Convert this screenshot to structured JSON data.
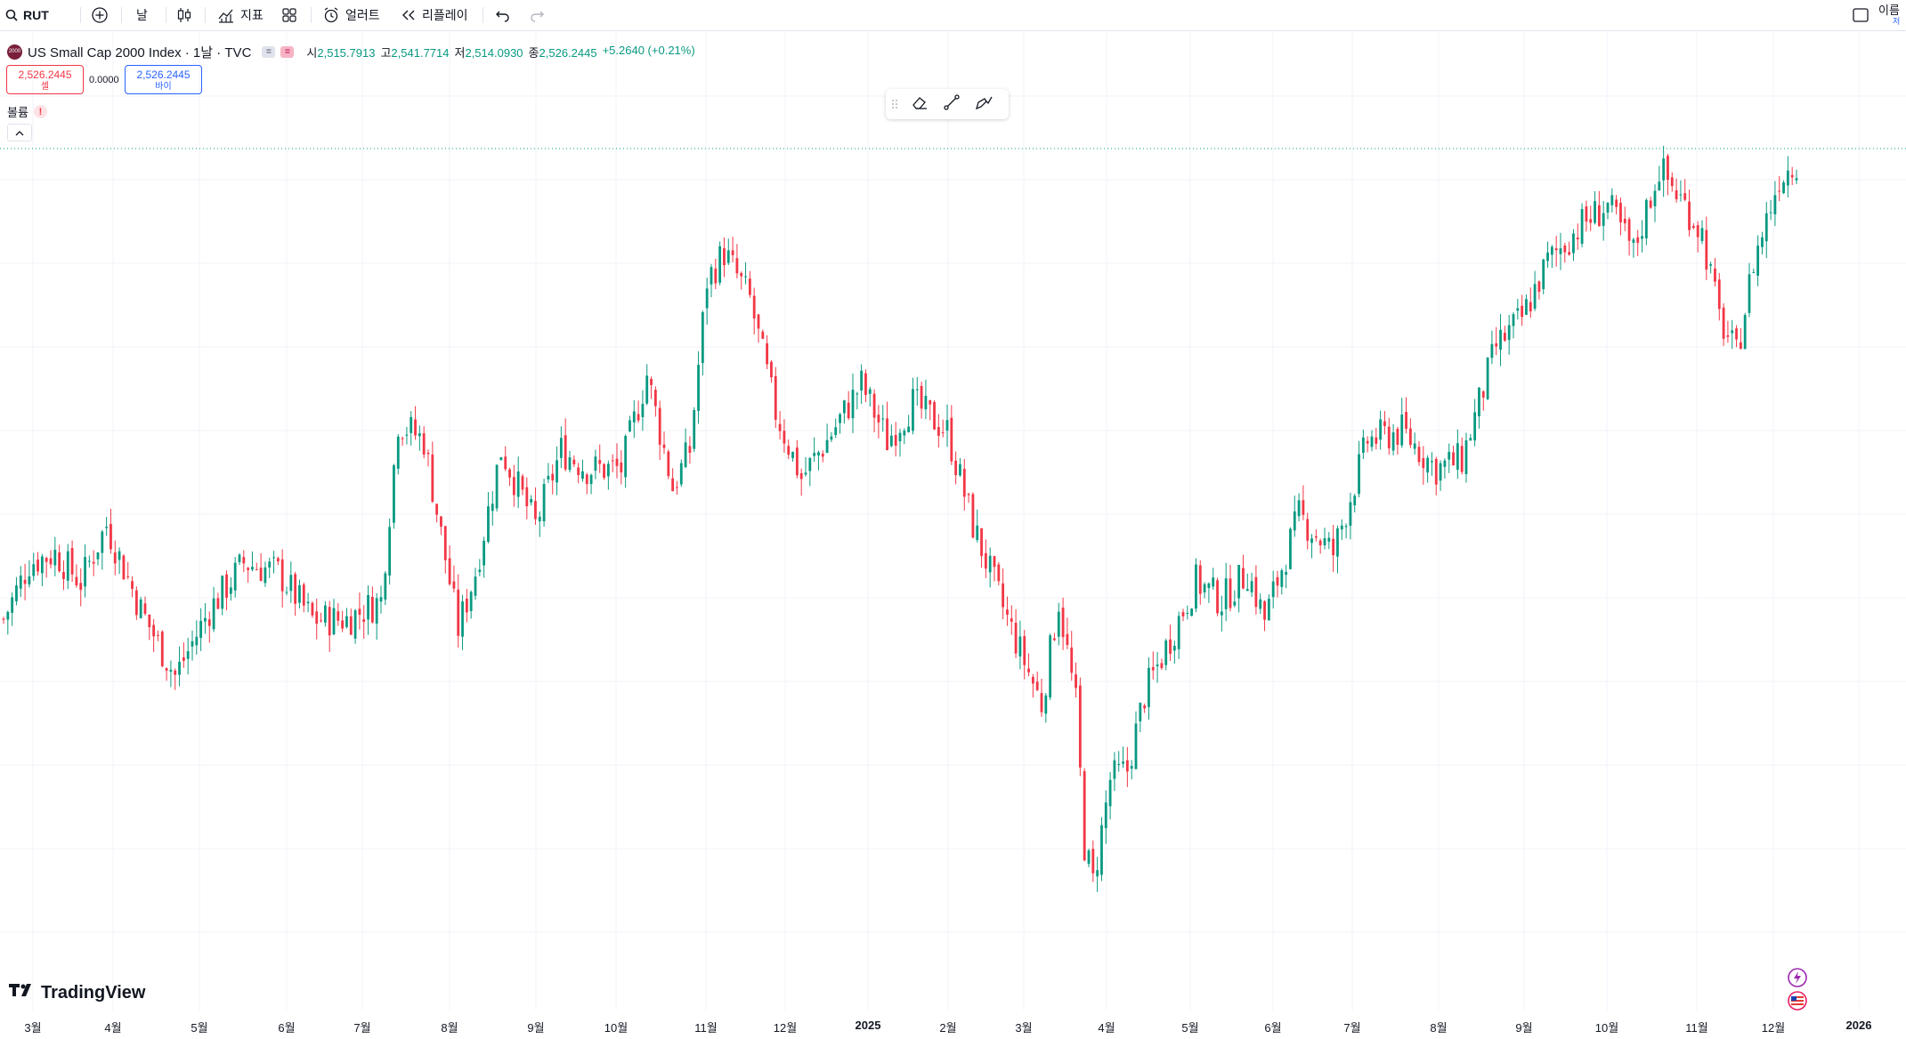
{
  "toolbar": {
    "symbol": "RUT",
    "interval": "날",
    "indicators": "지표",
    "alerts": "얼러트",
    "replay": "리플레이",
    "right_label": "이름",
    "right_sub": "저"
  },
  "legend": {
    "title": "US Small Cap 2000 Index · 1날 · TVC",
    "logo_text": "2000",
    "badge_a": "=",
    "badge_b": "=",
    "o_label": "시",
    "o": "2,515.7913",
    "h_label": "고",
    "h": "2,541.7714",
    "l_label": "저",
    "l": "2,514.0930",
    "c_label": "종",
    "c": "2,526.2445",
    "change": "+5.2640 (+0.21%)"
  },
  "trade": {
    "sell_price": "2,526.2445",
    "sell_label": "셀",
    "spread": "0.0000",
    "buy_price": "2,526.2445",
    "buy_label": "바이"
  },
  "volume": {
    "label": "볼륨",
    "warn": "!"
  },
  "brand": "TradingView",
  "colors": {
    "up": "#089981",
    "down": "#f23645",
    "grid": "#f0f3fa"
  },
  "chart_data": {
    "type": "candlestick",
    "price_range": [
      1700,
      2560
    ],
    "current_price": 2526.2445,
    "time_labels": [
      "3월",
      "4월",
      "5월",
      "6월",
      "7월",
      "8월",
      "9월",
      "10월",
      "11월",
      "12월",
      "2025",
      "2월",
      "3월",
      "4월",
      "5월",
      "6월",
      "7월",
      "8월",
      "9월",
      "10월",
      "11월",
      "12월",
      "2026"
    ],
    "key_points": [
      {
        "t": 0,
        "v": 2040
      },
      {
        "t": 3,
        "v": 2100
      },
      {
        "t": 6,
        "v": 2110
      },
      {
        "t": 9,
        "v": 2080
      },
      {
        "t": 12,
        "v": 2140
      },
      {
        "t": 16,
        "v": 2050
      },
      {
        "t": 20,
        "v": 1980
      },
      {
        "t": 24,
        "v": 2050
      },
      {
        "t": 28,
        "v": 2100
      },
      {
        "t": 32,
        "v": 2090
      },
      {
        "t": 36,
        "v": 2040
      },
      {
        "t": 40,
        "v": 2040
      },
      {
        "t": 44,
        "v": 2060
      },
      {
        "t": 46,
        "v": 2250
      },
      {
        "t": 49,
        "v": 2230
      },
      {
        "t": 51,
        "v": 2130
      },
      {
        "t": 53,
        "v": 2030
      },
      {
        "t": 55,
        "v": 2090
      },
      {
        "t": 58,
        "v": 2220
      },
      {
        "t": 62,
        "v": 2140
      },
      {
        "t": 65,
        "v": 2220
      },
      {
        "t": 68,
        "v": 2200
      },
      {
        "t": 72,
        "v": 2200
      },
      {
        "t": 75,
        "v": 2300
      },
      {
        "t": 78,
        "v": 2180
      },
      {
        "t": 80,
        "v": 2220
      },
      {
        "t": 82,
        "v": 2400
      },
      {
        "t": 84,
        "v": 2430
      },
      {
        "t": 87,
        "v": 2380
      },
      {
        "t": 90,
        "v": 2260
      },
      {
        "t": 93,
        "v": 2190
      },
      {
        "t": 96,
        "v": 2230
      },
      {
        "t": 100,
        "v": 2290
      },
      {
        "t": 103,
        "v": 2230
      },
      {
        "t": 106,
        "v": 2270
      },
      {
        "t": 110,
        "v": 2240
      },
      {
        "t": 113,
        "v": 2140
      },
      {
        "t": 117,
        "v": 2040
      },
      {
        "t": 121,
        "v": 1950
      },
      {
        "t": 123,
        "v": 2060
      },
      {
        "t": 125,
        "v": 1950
      },
      {
        "t": 126,
        "v": 1800
      },
      {
        "t": 127,
        "v": 1760
      },
      {
        "t": 129,
        "v": 1870
      },
      {
        "t": 131,
        "v": 1880
      },
      {
        "t": 133,
        "v": 1960
      },
      {
        "t": 136,
        "v": 2020
      },
      {
        "t": 139,
        "v": 2080
      },
      {
        "t": 142,
        "v": 2060
      },
      {
        "t": 145,
        "v": 2090
      },
      {
        "t": 147,
        "v": 2040
      },
      {
        "t": 151,
        "v": 2150
      },
      {
        "t": 155,
        "v": 2110
      },
      {
        "t": 159,
        "v": 2230
      },
      {
        "t": 163,
        "v": 2240
      },
      {
        "t": 167,
        "v": 2200
      },
      {
        "t": 170,
        "v": 2210
      },
      {
        "t": 174,
        "v": 2330
      },
      {
        "t": 177,
        "v": 2360
      },
      {
        "t": 180,
        "v": 2420
      },
      {
        "t": 184,
        "v": 2460
      },
      {
        "t": 187,
        "v": 2480
      },
      {
        "t": 190,
        "v": 2430
      },
      {
        "t": 193,
        "v": 2520
      },
      {
        "t": 196,
        "v": 2480
      },
      {
        "t": 198,
        "v": 2450
      },
      {
        "t": 200,
        "v": 2360
      },
      {
        "t": 202,
        "v": 2320
      },
      {
        "t": 204,
        "v": 2420
      },
      {
        "t": 207,
        "v": 2510
      },
      {
        "t": 209,
        "v": 2527
      }
    ]
  }
}
